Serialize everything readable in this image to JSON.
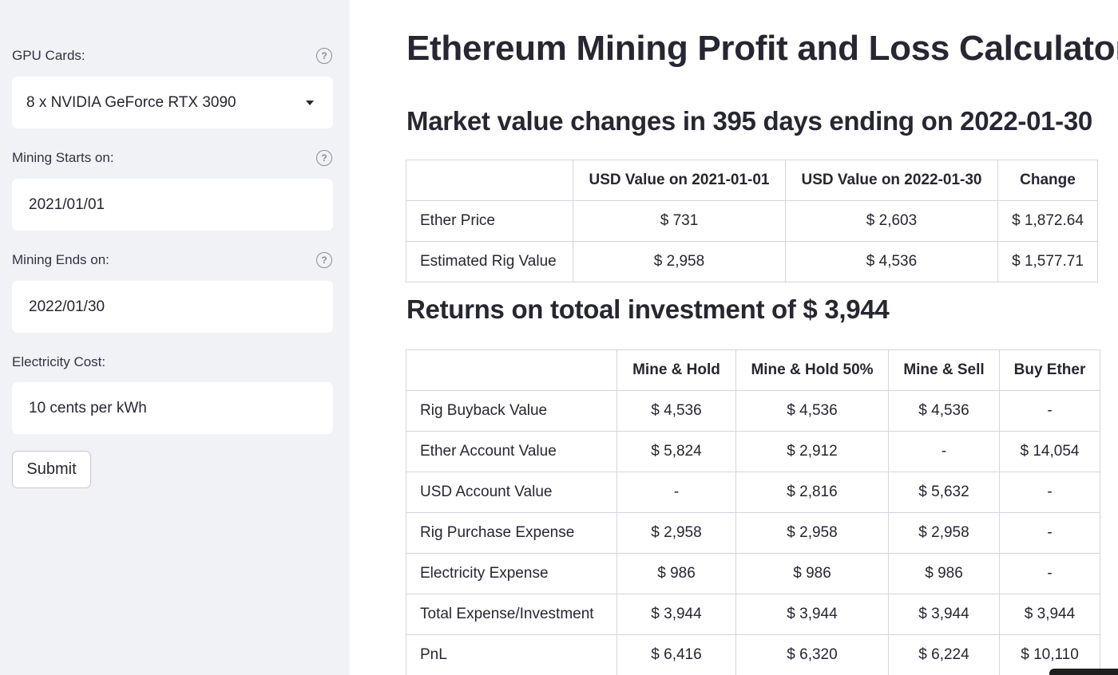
{
  "sidebar": {
    "gpu": {
      "label": "GPU Cards:",
      "value": "8 x NVIDIA GeForce RTX 3090"
    },
    "start": {
      "label": "Mining Starts on:",
      "value": "2021/01/01"
    },
    "end": {
      "label": "Mining Ends on:",
      "value": "2022/01/30"
    },
    "electricity": {
      "label": "Electricity Cost:",
      "value": "10 cents per kWh"
    },
    "submit_label": "Submit",
    "help_glyph": "?"
  },
  "main": {
    "title": "Ethereum Mining Profit and Loss Calculator",
    "market_heading": "Market value changes in 395 days ending on 2022-01-30",
    "market_table": {
      "headers": [
        "",
        "USD Value on 2021-01-01",
        "USD Value on 2022-01-30",
        "Change"
      ],
      "rows": [
        [
          "Ether Price",
          "$ 731",
          "$ 2,603",
          "$ 1,872.64"
        ],
        [
          "Estimated Rig Value",
          "$ 2,958",
          "$ 4,536",
          "$ 1,577.71"
        ]
      ]
    },
    "returns_heading": "Returns on totoal investment of $ 3,944",
    "returns_table": {
      "headers": [
        "",
        "Mine & Hold",
        "Mine & Hold 50%",
        "Mine & Sell",
        "Buy Ether"
      ],
      "rows": [
        [
          "Rig Buyback Value",
          "$ 4,536",
          "$ 4,536",
          "$ 4,536",
          "-"
        ],
        [
          "Ether Account Value",
          "$ 5,824",
          "$ 2,912",
          "-",
          "$ 14,054"
        ],
        [
          "USD Account Value",
          "-",
          "$ 2,816",
          "$ 5,632",
          "-"
        ],
        [
          "Rig Purchase Expense",
          "$ 2,958",
          "$ 2,958",
          "$ 2,958",
          "-"
        ],
        [
          "Electricity Expense",
          "$ 986",
          "$ 986",
          "$ 986",
          "-"
        ],
        [
          "Total Expense/Investment",
          "$ 3,944",
          "$ 3,944",
          "$ 3,944",
          "$ 3,944"
        ],
        [
          "PnL",
          "$ 6,416",
          "$ 6,320",
          "$ 6,224",
          "$ 10,110"
        ]
      ]
    }
  }
}
